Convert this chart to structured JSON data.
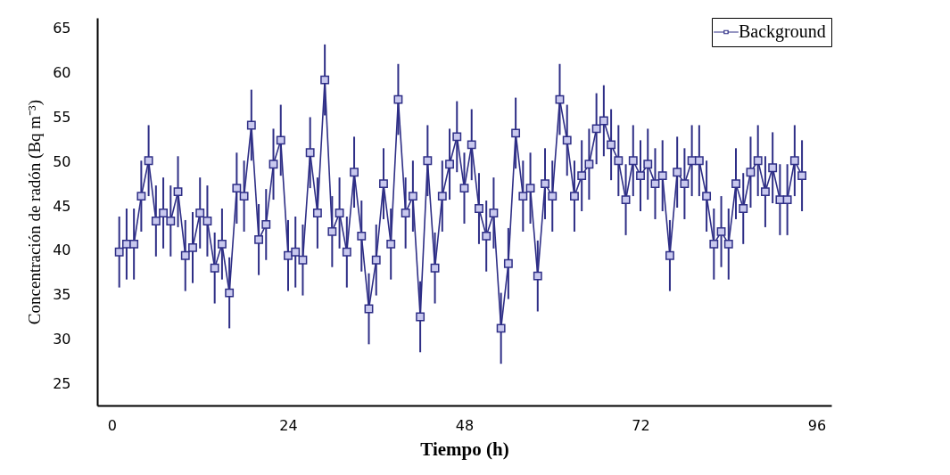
{
  "chart_data": {
    "type": "line",
    "xlabel": "Tiempo (h)",
    "ylabel": "Concentración de radón  (Bq m⁻³)",
    "x": [
      1,
      2,
      3,
      4,
      5,
      6,
      7,
      8,
      9,
      10,
      11,
      12,
      13,
      14,
      15,
      16,
      17,
      18,
      19,
      20,
      21,
      22,
      23,
      24,
      25,
      26,
      27,
      28,
      29,
      30,
      31,
      32,
      33,
      34,
      35,
      36,
      37,
      38,
      39,
      40,
      41,
      42,
      43,
      44,
      45,
      46,
      47,
      48,
      49,
      50,
      51,
      52,
      53,
      54,
      55,
      56,
      57,
      58,
      59,
      60,
      61,
      62,
      63,
      64,
      65,
      66,
      67,
      68,
      69,
      70,
      71,
      72,
      73,
      74,
      75,
      76,
      77,
      78,
      79,
      80,
      81,
      82,
      83,
      84,
      85,
      86,
      87,
      88,
      89,
      90,
      91,
      92,
      93,
      94
    ],
    "series": [
      {
        "name": "Background",
        "color": "#2e2e86",
        "values": [
          39.8,
          40.7,
          40.7,
          46.1,
          50.1,
          43.3,
          44.2,
          43.3,
          46.6,
          39.4,
          40.3,
          44.2,
          43.3,
          38.0,
          40.7,
          35.2,
          47.0,
          46.1,
          54.1,
          41.2,
          42.9,
          49.7,
          52.4,
          39.4,
          39.8,
          38.9,
          51.0,
          44.2,
          59.2,
          42.1,
          44.2,
          39.8,
          48.8,
          41.6,
          33.4,
          38.9,
          47.5,
          40.7,
          57.0,
          44.2,
          46.1,
          32.5,
          50.1,
          38.0,
          46.1,
          49.7,
          52.8,
          47.0,
          51.9,
          44.7,
          41.6,
          44.2,
          31.2,
          38.5,
          53.2,
          46.1,
          47.0,
          37.1,
          47.5,
          46.1,
          57.0,
          52.4,
          46.1,
          48.4,
          49.7,
          53.7,
          54.6,
          51.9,
          50.1,
          45.7,
          50.1,
          48.4,
          49.7,
          47.5,
          48.4,
          39.4,
          48.8,
          47.5,
          50.1,
          50.1,
          46.1,
          40.7,
          42.1,
          40.7,
          47.5,
          44.7,
          48.8,
          50.1,
          46.6,
          49.3,
          45.7,
          45.7,
          50.1,
          48.4
        ],
        "errors": [
          4,
          4,
          4,
          4,
          4,
          4,
          4,
          4,
          4,
          4,
          4,
          4,
          4,
          4,
          4,
          4,
          4,
          4,
          4,
          4,
          4,
          4,
          4,
          4,
          4,
          4,
          4,
          4,
          4,
          4,
          4,
          4,
          4,
          4,
          4,
          4,
          4,
          4,
          4,
          4,
          4,
          4,
          4,
          4,
          4,
          4,
          4,
          4,
          4,
          4,
          4,
          4,
          4,
          4,
          4,
          4,
          4,
          4,
          4,
          4,
          4,
          4,
          4,
          4,
          4,
          4,
          4,
          4,
          4,
          4,
          4,
          4,
          4,
          4,
          4,
          4,
          4,
          4,
          4,
          4,
          4,
          4,
          4,
          4,
          4,
          4,
          4,
          4,
          4,
          4,
          4,
          4,
          4,
          4
        ]
      }
    ],
    "xlim": [
      -2,
      98
    ],
    "xticks": [
      0,
      24,
      48,
      72,
      96
    ],
    "ylim": [
      22.5,
      66.2
    ],
    "yticks": [
      25,
      30,
      35,
      40,
      45,
      50,
      55,
      60,
      65
    ],
    "grid": false,
    "legend": "top right",
    "marker": "square",
    "line_style": "solid"
  }
}
